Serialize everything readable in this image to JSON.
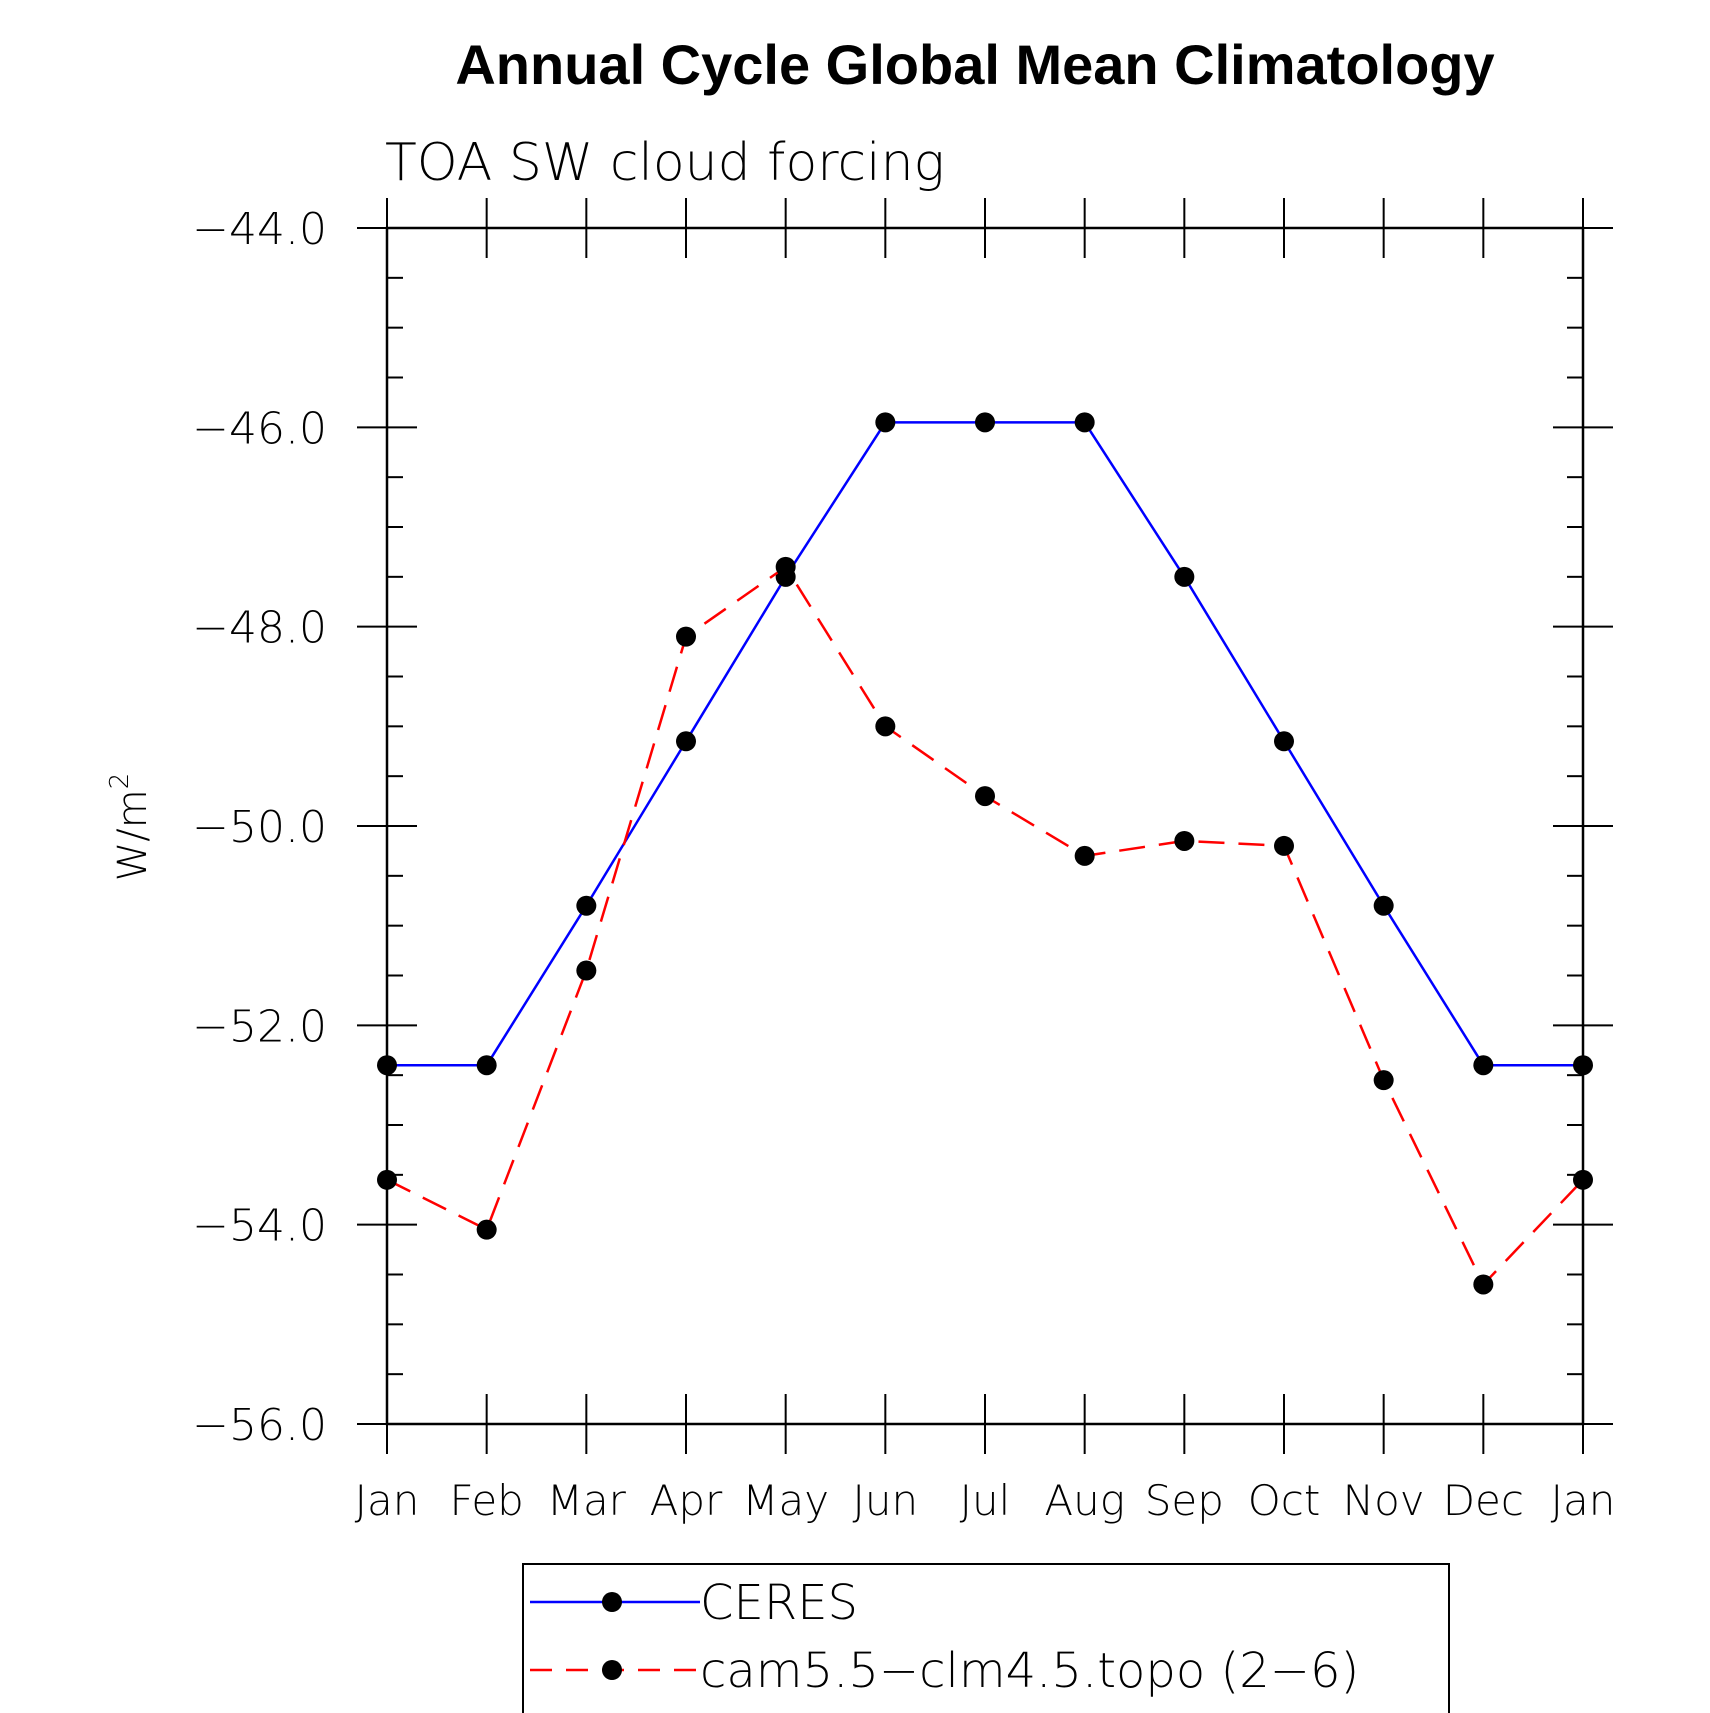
{
  "chart_data": {
    "type": "line",
    "title": "Annual Cycle Global Mean Climatology",
    "subtitle": "TOA SW cloud forcing",
    "ylabel": "W/m",
    "ylabel_sup": "2",
    "ylim": [
      -56.0,
      -44.0
    ],
    "y_ticks": [
      "−44.0",
      "−46.0",
      "−48.0",
      "−50.0",
      "−52.0",
      "−54.0",
      "−56.0"
    ],
    "y_tick_values": [
      -44.0,
      -46.0,
      -48.0,
      -50.0,
      -52.0,
      -54.0,
      -56.0
    ],
    "categories": [
      "Jan",
      "Feb",
      "Mar",
      "Apr",
      "May",
      "Jun",
      "Jul",
      "Aug",
      "Sep",
      "Oct",
      "Nov",
      "Dec",
      "Jan"
    ],
    "series": [
      {
        "name": "CERES",
        "color": "#0000ff",
        "dash": "solid",
        "values": [
          -52.4,
          -52.4,
          -50.8,
          -49.15,
          -47.5,
          -45.95,
          -45.95,
          -45.95,
          -47.5,
          -49.15,
          -50.8,
          -52.4,
          -52.4
        ]
      },
      {
        "name": "cam5.5−clm4.5.topo (2−6)",
        "color": "#ff0000",
        "dash": "dashed",
        "values": [
          -53.55,
          -54.05,
          -51.45,
          -48.1,
          -47.4,
          -49.0,
          -49.7,
          -50.3,
          -50.15,
          -50.2,
          -52.55,
          -54.6,
          -53.55
        ]
      }
    ],
    "legend_position": "bottom-center",
    "grid": false
  }
}
